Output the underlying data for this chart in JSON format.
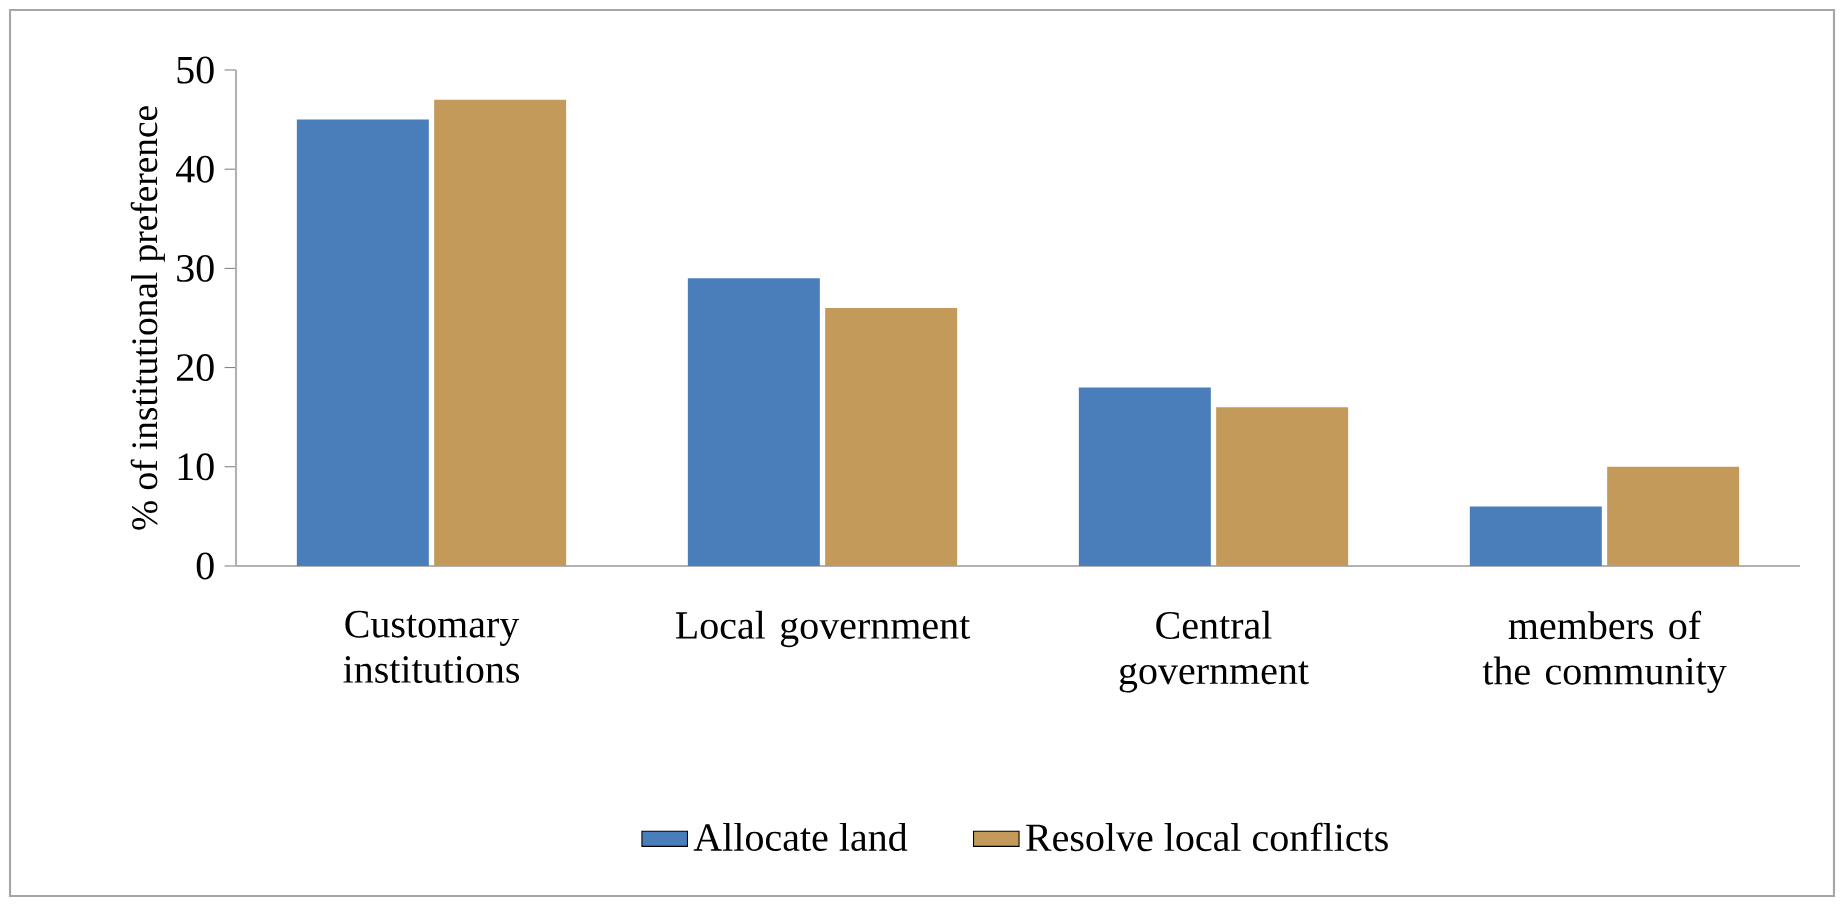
{
  "chart_data": {
    "type": "bar",
    "ylabel": "% of institutional preference",
    "categories": [
      "Customary institutions",
      "Local government",
      "Central government",
      "members of the community"
    ],
    "series": [
      {
        "name": "Allocate land",
        "color": "#4a7ebb",
        "values": [
          45,
          29,
          18,
          6
        ]
      },
      {
        "name": "Resolve local conflicts",
        "color": "#c49a5a",
        "values": [
          47,
          26,
          16,
          10
        ]
      }
    ],
    "ylim": [
      0,
      50
    ],
    "yticks": [
      0,
      10,
      20,
      30,
      40,
      50
    ],
    "grid": false,
    "legend": "bottom"
  }
}
